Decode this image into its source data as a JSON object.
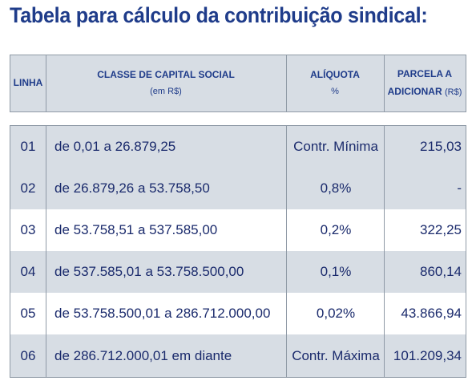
{
  "title": "Tabela para cálculo da contribuição sindical:",
  "header": {
    "linha": "LINHA",
    "classe": "CLASSE DE CAPITAL SOCIAL",
    "classe_sub": "(em R$)",
    "aliquota": "ALÍQUOTA",
    "aliquota_sub": "%",
    "parcela_line1": "PARCELA A",
    "parcela_line2": "ADICIONAR",
    "parcela_unit": "(R$)"
  },
  "rows": [
    {
      "linha": "01",
      "classe": "de 0,01 a 26.879,25",
      "aliquota": "Contr. Mínima",
      "parcela": "215,03"
    },
    {
      "linha": "02",
      "classe": "de 26.879,26 a 53.758,50",
      "aliquota": "0,8%",
      "parcela": "-"
    },
    {
      "linha": "03",
      "classe": "de 53.758,51 a 537.585,00",
      "aliquota": "0,2%",
      "parcela": "322,25"
    },
    {
      "linha": "04",
      "classe": "de 537.585,01 a 53.758.500,00",
      "aliquota": "0,1%",
      "parcela": "860,14"
    },
    {
      "linha": "05",
      "classe": "de 53.758.500,01 a 286.712.000,00",
      "aliquota": "0,02%",
      "parcela": "43.866,94"
    },
    {
      "linha": "06",
      "classe": "de 286.712.000,01 em diante",
      "aliquota": "Contr. Máxima",
      "parcela": "101.209,34"
    }
  ]
}
